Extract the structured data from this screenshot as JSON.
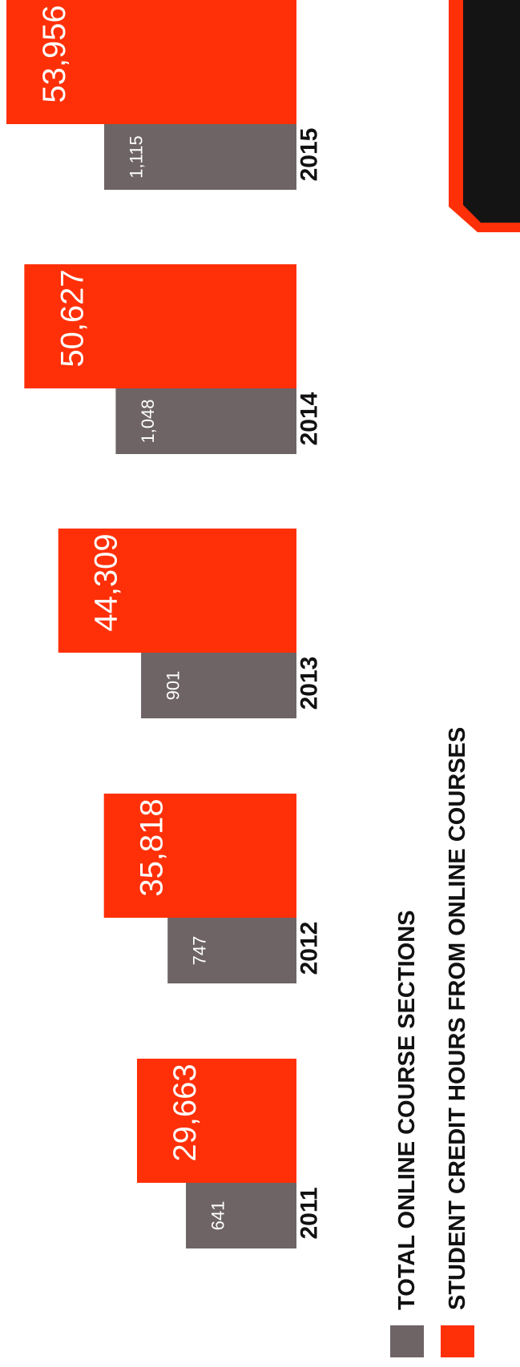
{
  "chart_data": {
    "type": "bar",
    "categories": [
      "2011",
      "2012",
      "2013",
      "2014",
      "2015"
    ],
    "series": [
      {
        "name": "TOTAL ONLINE COURSE SECTIONS",
        "values": [
          641,
          747,
          901,
          1048,
          1115
        ],
        "labels": [
          "641",
          "747",
          "901",
          "1,048",
          "1,115"
        ]
      },
      {
        "name": "STUDENT CREDIT HOURS FROM ONLINE COURSES",
        "values": [
          29663,
          35818,
          44309,
          50627,
          53956
        ],
        "labels": [
          "29,663",
          "35,818",
          "44,309",
          "50,627",
          "53,956"
        ]
      }
    ],
    "colors": {
      "sections": "#6e6466",
      "credit_hours": "#ff3008",
      "year_text": "#111111",
      "bg_shape": "#ff3008",
      "bg_shape_inner": "#141414"
    },
    "orientation": "rotated-90-clockwise",
    "legend_position": "bottom"
  }
}
